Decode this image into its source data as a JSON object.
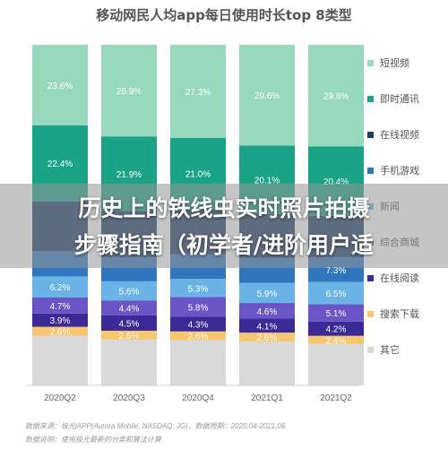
{
  "chart_data": {
    "type": "bar",
    "stacked": true,
    "title": "移动网民人均app每日使用时长top 8类型",
    "categories": [
      "2020Q2",
      "2020Q3",
      "2020Q4",
      "2021Q1",
      "2021Q2"
    ],
    "series": [
      {
        "name": "其它",
        "color": "#d9d9d9",
        "values": [
          null,
          null,
          null,
          null,
          null
        ],
        "labels": [
          "",
          "",
          "",
          "",
          ""
        ]
      },
      {
        "name": "搜索下载",
        "color": "#f7c66f",
        "values": [
          2.6,
          2.6,
          2.6,
          2.6,
          2.4
        ],
        "labels": [
          "2.6%",
          "2.6%",
          "2.6%",
          "2.6%",
          "2.4%"
        ]
      },
      {
        "name": "在线阅读",
        "color": "#3b2a96",
        "values": [
          3.9,
          4.5,
          4.3,
          4.1,
          4.2
        ],
        "labels": [
          "3.9%",
          "4.5%",
          "4.3%",
          "4.1%",
          "4.2%"
        ]
      },
      {
        "name": "综合商城",
        "color": "#6a55c6",
        "values": [
          4.7,
          4.4,
          5.8,
          4.6,
          5.1
        ],
        "labels": [
          "4.7%",
          "4.4%",
          "5.8%",
          "4.6%",
          "5.1%"
        ]
      },
      {
        "name": "新闻",
        "color": "#69b3e6",
        "values": [
          6.2,
          5.6,
          5.3,
          5.9,
          6.5
        ],
        "labels": [
          "6.2%",
          "5.6%",
          "5.3%",
          "5.9%",
          "6.5%"
        ]
      },
      {
        "name": "手机游戏",
        "color": "#2f76bf",
        "values": [
          7.4,
          7.2,
          7.2,
          7.3,
          7.3
        ],
        "labels": [
          "",
          "",
          "",
          "",
          "7.3%"
        ]
      },
      {
        "name": "在线视频",
        "color": "#1b3b67",
        "values": [
          null,
          null,
          null,
          null,
          null
        ],
        "labels": [
          "",
          "",
          "",
          "",
          ""
        ]
      },
      {
        "name": "即时通讯",
        "color": "#1aa386",
        "values": [
          22.4,
          21.9,
          21.0,
          20.1,
          20.4
        ],
        "labels": [
          "22.4%",
          "21.9%",
          "21.0%",
          "20.1%",
          "20.4%"
        ]
      },
      {
        "name": "短视频",
        "color": "#98d9bd",
        "values": [
          23.6,
          26.9,
          27.3,
          29.6,
          29.8
        ],
        "labels": [
          "23.6%",
          "26.9%",
          "27.3%",
          "29.6%",
          "29.8%"
        ]
      }
    ],
    "legend_position": "right",
    "ylim": [
      0,
      100
    ]
  },
  "banner": {
    "line1": "历史上的铁线虫实时照片拍摄",
    "line2": "步骤指南（初学者/进阶用户适"
  },
  "footnotes": {
    "line1": "数据来源：极光iAPP(Aurora Mobile, NASDAQ: JG)，数据周期：2020.04-2021.06",
    "line2": "数据说明：使用极光最新的分类和算法计算"
  }
}
